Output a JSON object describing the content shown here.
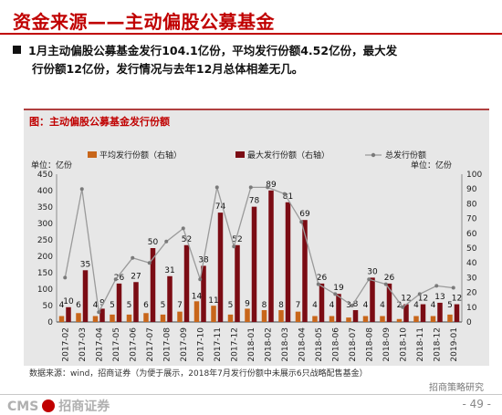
{
  "slide": {
    "title": "资金来源——主动偏股公募基金",
    "bullet_line1": "1月主动偏股公募基金发行104.1亿份，平均发行份额4.52亿份，最大发",
    "bullet_line2": "行份额12亿份，发行情况与去年12月总体相差无几。",
    "source": "数据来源：wind，招商证券（为便于展示，2018年7月发行份额中未展示6只战略配售基金）",
    "logo_en": "CMS",
    "logo_cn": "招商证券",
    "page_number": "- 49 -",
    "watermark": "招商策略研究"
  },
  "chart_data": {
    "type": "bar",
    "title": "图：主动偏股公募基金发行份额",
    "left_unit": "单位：亿份",
    "right_unit": "单位：亿份",
    "categories": [
      "2017-02",
      "2017-03",
      "2017-04",
      "2017-05",
      "2017-06",
      "2017-07",
      "2017-08",
      "2017-09",
      "2017-10",
      "2017-11",
      "2017-12",
      "2018-01",
      "2018-02",
      "2018-03",
      "2018-04",
      "2018-05",
      "2018-06",
      "2018-07",
      "2018-08",
      "2018-09",
      "2018-10",
      "2018-11",
      "2018-12",
      "2019-01"
    ],
    "y_left": {
      "min": 0,
      "max": 450,
      "ticks": [
        0,
        50,
        100,
        150,
        200,
        250,
        300,
        350,
        400,
        450
      ]
    },
    "y_right": {
      "min": 0,
      "max": 100,
      "ticks": [
        0,
        10,
        20,
        30,
        40,
        50,
        60,
        70,
        80,
        90,
        100
      ]
    },
    "legend": [
      "平均发行份额（右轴）",
      "最大发行份额（右轴）",
      "总发行份额"
    ],
    "series": [
      {
        "name": "平均发行份额（右轴）",
        "axis": "right",
        "color": "#c8661a",
        "values": [
          4,
          6,
          4,
          5,
          5,
          6,
          5,
          7,
          14,
          11,
          5,
          9,
          8,
          8,
          7,
          4,
          4,
          3,
          4,
          4,
          2,
          4,
          4,
          5
        ]
      },
      {
        "name": "最大发行份额（右轴）",
        "axis": "right",
        "color": "#7b0c14",
        "values": [
          10,
          35,
          9,
          26,
          27,
          50,
          31,
          52,
          38,
          74,
          52,
          78,
          89,
          81,
          69,
          26,
          19,
          8,
          30,
          26,
          12,
          12,
          13,
          12
        ]
      },
      {
        "name": "总发行份额",
        "axis": "left",
        "color": "#9a9a9a",
        "values": [
          135,
          405,
          30,
          130,
          195,
          180,
          245,
          285,
          130,
          410,
          230,
          410,
          410,
          390,
          305,
          115,
          85,
          50,
          130,
          115,
          45,
          85,
          110,
          104
        ]
      }
    ],
    "max_labels": [
      10,
      35,
      9,
      26,
      27,
      50,
      31,
      52,
      38,
      74,
      52,
      78,
      89,
      81,
      69,
      26,
      19,
      8,
      30,
      26,
      12,
      12,
      13,
      12
    ],
    "avg_labels": [
      4,
      6,
      4,
      5,
      5,
      6,
      5,
      7,
      14,
      11,
      5,
      9,
      8,
      8,
      7,
      4,
      4,
      3,
      4,
      4,
      2,
      4,
      4,
      5
    ]
  }
}
